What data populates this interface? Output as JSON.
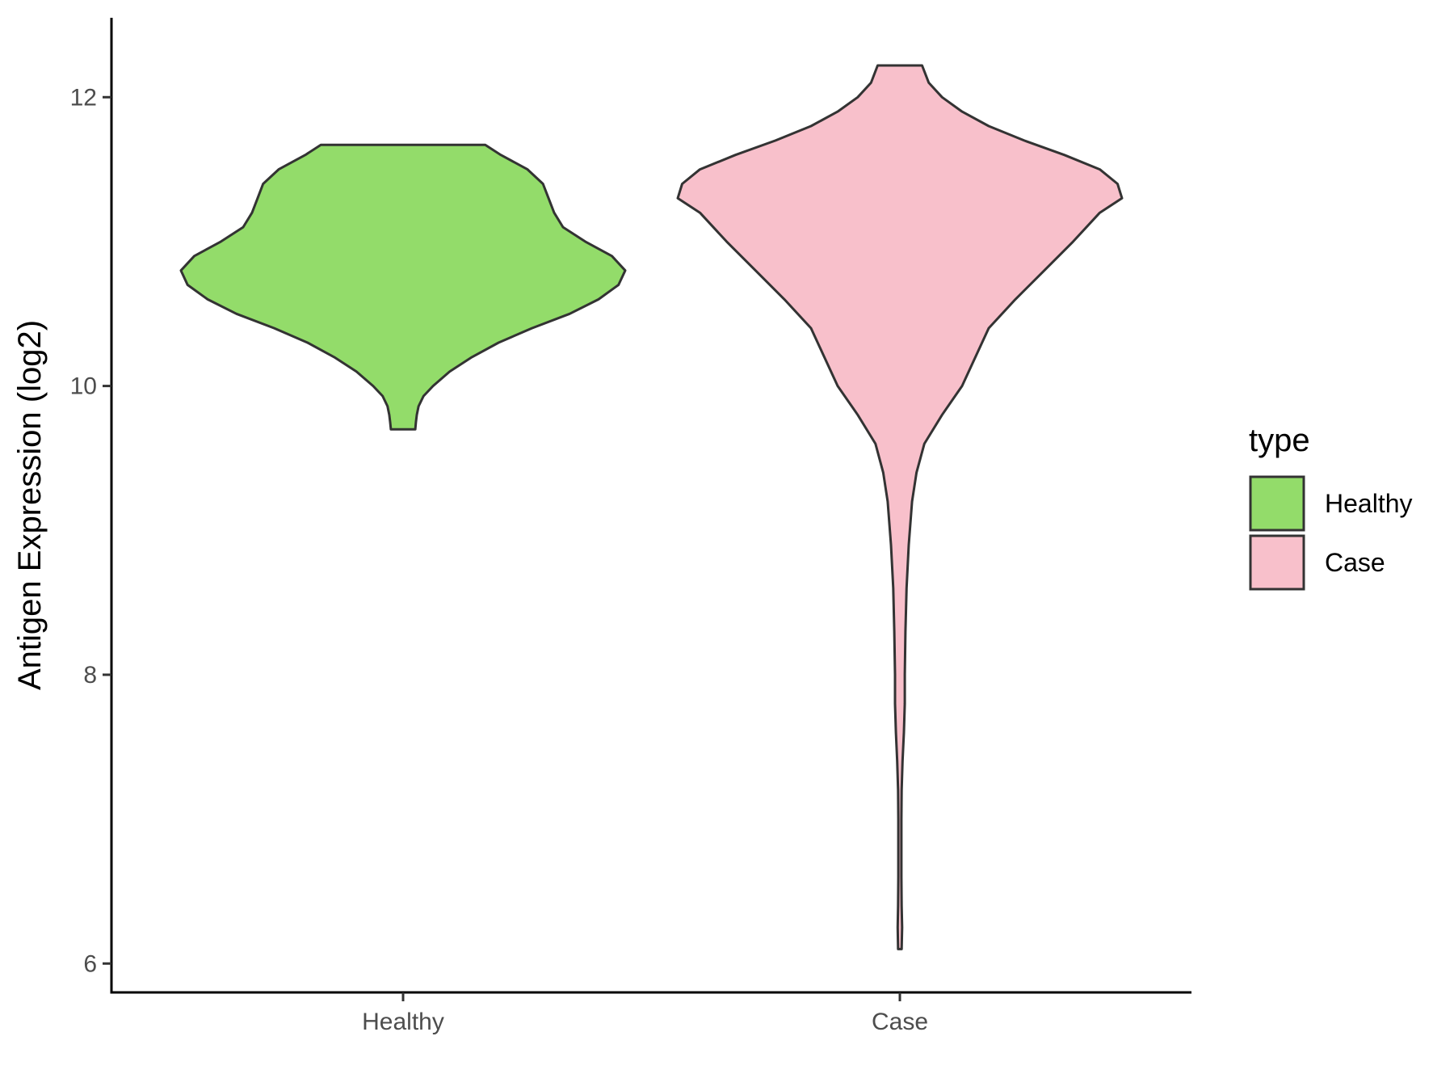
{
  "chart_data": {
    "type": "violin",
    "title": "",
    "xlabel": "",
    "ylabel": "Antigen Expression (log2)",
    "ylim": [
      5.8,
      12.55
    ],
    "yticks": [
      6,
      8,
      10,
      12
    ],
    "ytick_labels": [
      "6",
      "8",
      "10",
      "12"
    ],
    "categories": [
      "Healthy",
      "Case"
    ],
    "grid": false,
    "legend": {
      "title": "type",
      "position": "right",
      "entries": [
        "Healthy",
        "Case"
      ]
    },
    "series": [
      {
        "name": "Healthy",
        "color": "#93dc6a",
        "min": 9.7,
        "max": 11.67,
        "density_profile": [
          [
            9.7,
            0.055
          ],
          [
            9.75,
            0.058
          ],
          [
            9.8,
            0.062
          ],
          [
            9.86,
            0.07
          ],
          [
            9.93,
            0.092
          ],
          [
            10.0,
            0.135
          ],
          [
            10.1,
            0.21
          ],
          [
            10.2,
            0.31
          ],
          [
            10.3,
            0.43
          ],
          [
            10.4,
            0.58
          ],
          [
            10.5,
            0.75
          ],
          [
            10.6,
            0.88
          ],
          [
            10.7,
            0.97
          ],
          [
            10.8,
            1.0
          ],
          [
            10.9,
            0.94
          ],
          [
            11.0,
            0.82
          ],
          [
            11.1,
            0.72
          ],
          [
            11.2,
            0.68
          ],
          [
            11.3,
            0.655
          ],
          [
            11.4,
            0.63
          ],
          [
            11.5,
            0.56
          ],
          [
            11.6,
            0.44
          ],
          [
            11.67,
            0.37
          ]
        ]
      },
      {
        "name": "Case",
        "color": "#f8c0cb",
        "min": 6.1,
        "max": 12.22,
        "density_profile": [
          [
            6.1,
            0.008
          ],
          [
            6.25,
            0.01
          ],
          [
            6.4,
            0.008
          ],
          [
            6.6,
            0.007
          ],
          [
            6.8,
            0.007
          ],
          [
            7.0,
            0.007
          ],
          [
            7.2,
            0.008
          ],
          [
            7.4,
            0.012
          ],
          [
            7.6,
            0.018
          ],
          [
            7.8,
            0.022
          ],
          [
            8.0,
            0.022
          ],
          [
            8.3,
            0.025
          ],
          [
            8.6,
            0.03
          ],
          [
            8.9,
            0.04
          ],
          [
            9.2,
            0.055
          ],
          [
            9.4,
            0.075
          ],
          [
            9.6,
            0.11
          ],
          [
            9.8,
            0.19
          ],
          [
            10.0,
            0.28
          ],
          [
            10.2,
            0.34
          ],
          [
            10.4,
            0.4
          ],
          [
            10.6,
            0.52
          ],
          [
            10.8,
            0.65
          ],
          [
            11.0,
            0.78
          ],
          [
            11.2,
            0.9
          ],
          [
            11.3,
            1.0
          ],
          [
            11.4,
            0.98
          ],
          [
            11.5,
            0.9
          ],
          [
            11.6,
            0.74
          ],
          [
            11.7,
            0.56
          ],
          [
            11.8,
            0.4
          ],
          [
            11.9,
            0.28
          ],
          [
            12.0,
            0.19
          ],
          [
            12.1,
            0.13
          ],
          [
            12.22,
            0.1
          ]
        ]
      }
    ]
  }
}
